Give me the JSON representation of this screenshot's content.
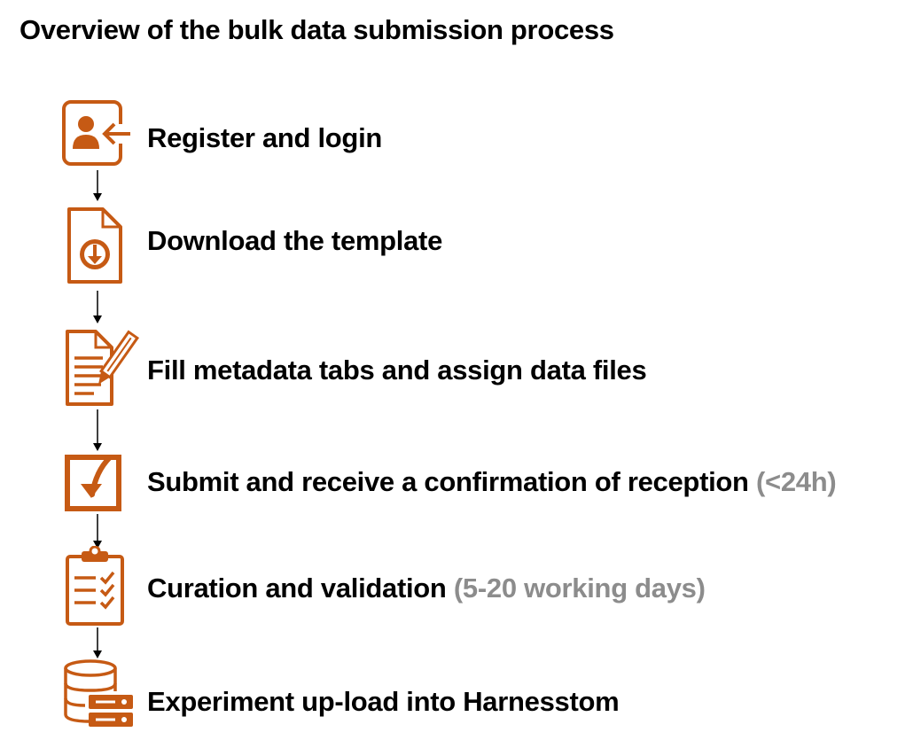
{
  "title": "Overview of the bulk data submission process",
  "colors": {
    "accent": "#C65A14",
    "note": "#8C8C8C",
    "text": "#000000"
  },
  "steps": [
    {
      "label": "Register and login",
      "note": "",
      "icon": "user-login-icon"
    },
    {
      "label": "Download the template",
      "note": "",
      "icon": "file-download-icon"
    },
    {
      "label": "Fill metadata tabs and assign data files",
      "note": "",
      "icon": "document-edit-icon"
    },
    {
      "label": "Submit and receive a confirmation of reception",
      "note": "(<24h)",
      "icon": "submit-check-icon"
    },
    {
      "label": "Curation and validation",
      "note": "(5-20 working days)",
      "icon": "clipboard-checklist-icon"
    },
    {
      "label": "Experiment up-load into Harnesstom",
      "note": "",
      "icon": "database-server-icon"
    }
  ]
}
